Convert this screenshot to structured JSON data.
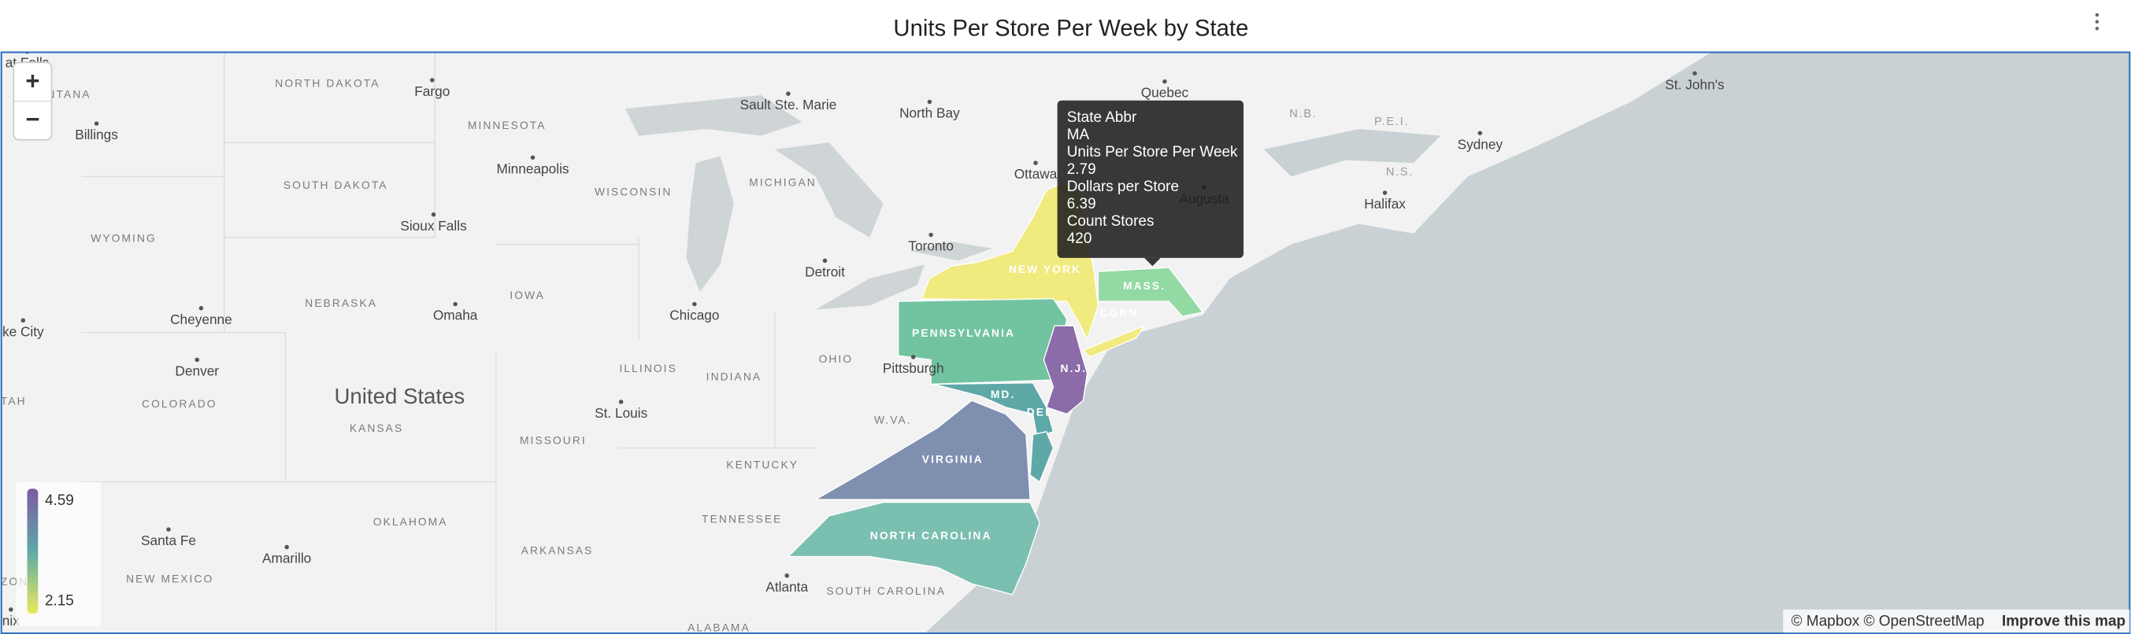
{
  "header": {
    "title": "Units Per Store Per Week by State"
  },
  "map": {
    "zoom": [
      "+",
      "−"
    ],
    "labels": [
      "at Falls",
      "ONTANA",
      "NORTH DAKOTA",
      "Fargo",
      "Sault Ste. Marie",
      "North Bay",
      "Quebec",
      "N.B.",
      "P.E.I.",
      "St. John's",
      "Sydney",
      "MINNESOTA",
      "Billings",
      "Minneapolis",
      "WISCONSIN",
      "MICHIGAN",
      "Ottawa",
      "Augusta",
      "N.S.",
      "Halifax",
      "SOUTH DAKOTA",
      "WYOMING",
      "Sioux Falls",
      "Toronto",
      "Detroit",
      "NEW YORK",
      "MASS.",
      "IOWA",
      "NEBRASKA",
      "Chicago",
      "Cheyenne",
      "Omaha",
      "CONN.",
      "PENNSYLVANIA",
      "ke City",
      "Denver",
      "ILLINOIS",
      "INDIANA",
      "OHIO",
      "Pittsburgh",
      "N.J.",
      "United States",
      "COLORADO",
      "KANSAS",
      "MD.",
      "DEL.",
      "St. Louis",
      "TAH",
      "W.VA.",
      "MISSOURI",
      "KENTUCKY",
      "VIRGINIA",
      "OKLAHOMA",
      "TENNESSEE",
      "NORTH CAROLINA",
      "Santa Fe",
      "Amarillo",
      "NEW MEXICO",
      "ARKANSAS",
      "Atlanta",
      "SOUTH CAROLINA",
      "ALABAMA",
      "ZONA",
      "nix"
    ],
    "tooltip": [
      {
        "label": "State Abbr",
        "value": "MA"
      },
      {
        "label": "Units Per Store Per Week",
        "value": 2.79
      },
      {
        "label": "Dollars per Store",
        "value": 6.39
      },
      {
        "label": "Count Stores",
        "value": 420
      }
    ],
    "legend": {
      "max": 4.59,
      "min": 2.15
    },
    "attribution": {
      "credit": "© Mapbox © OpenStreetMap",
      "link": "Improve this map"
    }
  }
}
